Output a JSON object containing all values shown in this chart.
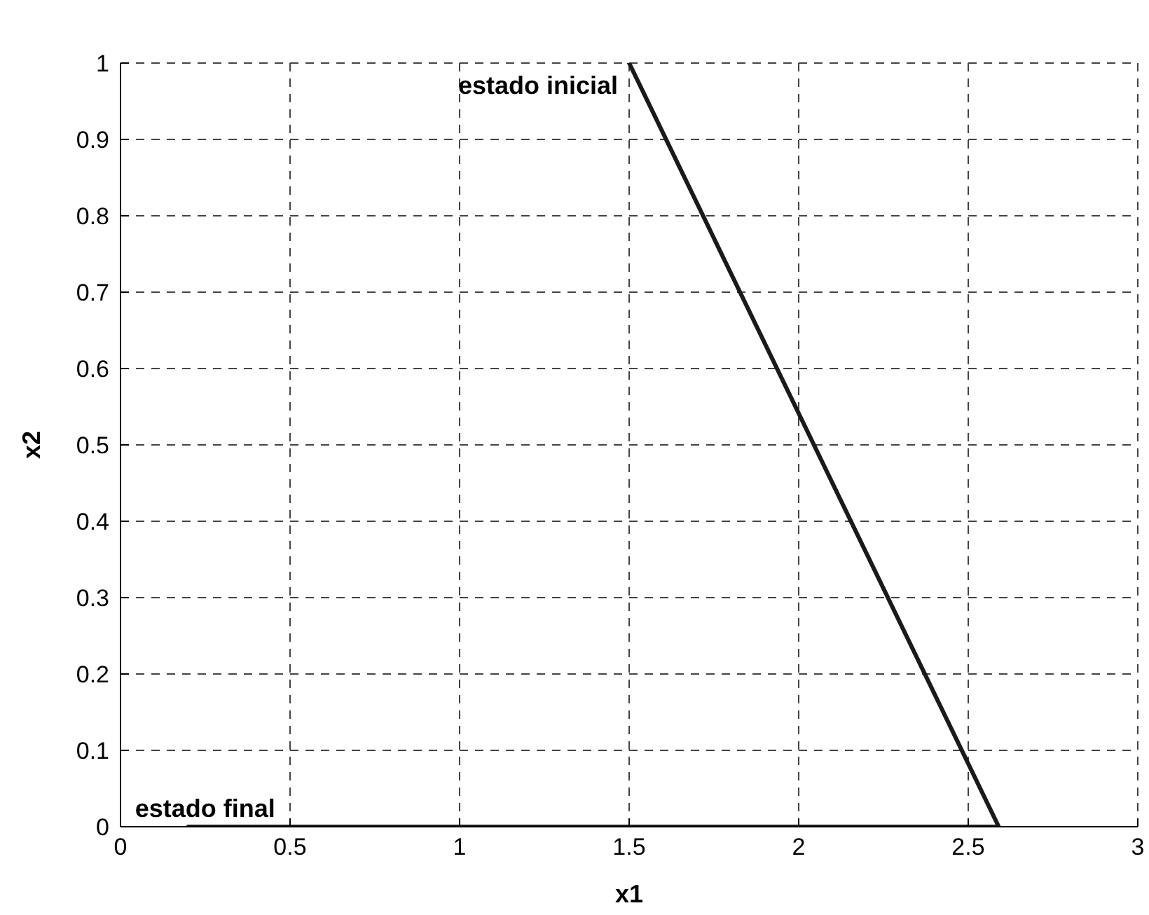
{
  "chart_data": {
    "type": "line",
    "xlabel": "x1",
    "ylabel": "x2",
    "series": [
      {
        "color": "#1a1a1a",
        "x": [
          1.5,
          2.59,
          0.2
        ],
        "values": [
          1,
          0,
          0
        ]
      }
    ],
    "xlim": [
      0,
      3
    ],
    "xticks": [
      0,
      0.5,
      1,
      1.5,
      2,
      2.5,
      3
    ],
    "ylim": [
      0,
      1
    ],
    "yticks": [
      0,
      0.1,
      0.2,
      0.3,
      0.4,
      0.5,
      0.6,
      0.7,
      0.8,
      0.9,
      1
    ],
    "grid": true,
    "marker": "none",
    "line_style": "solid",
    "annotations": [
      {
        "text": "estado inicial",
        "x": 1.5,
        "y": 1
      },
      {
        "text": "estado final",
        "x": 0.2,
        "y": 0
      }
    ]
  }
}
